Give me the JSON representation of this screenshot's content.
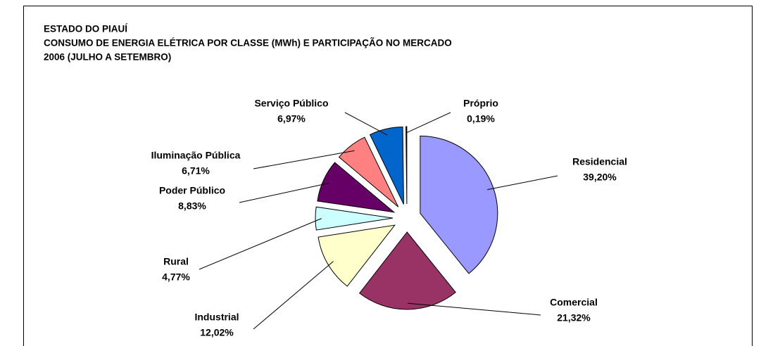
{
  "chart_data": {
    "type": "pie",
    "title": [
      "ESTADO DO PIAUÍ",
      "CONSUMO DE ENERGIA ELÉTRICA POR CLASSE (MWh) E PARTICIPAÇÃO NO MERCADO",
      "2006 (JULHO A SETEMBRO)"
    ],
    "categories": [
      "Residencial",
      "Comercial",
      "Industrial",
      "Rural",
      "Poder Público",
      "Iluminação Pública",
      "Serviço Público",
      "Próprio"
    ],
    "values": [
      39.2,
      21.32,
      12.02,
      4.77,
      8.83,
      6.71,
      6.97,
      0.19
    ],
    "value_labels": [
      "39,20%",
      "21,32%",
      "12,02%",
      "4,77%",
      "8,83%",
      "6,71%",
      "6,97%",
      "0,19%"
    ],
    "colors": [
      "#9999ff",
      "#993366",
      "#ffffcc",
      "#ccffff",
      "#660066",
      "#ff8080",
      "#0066cc",
      "#000080"
    ]
  }
}
